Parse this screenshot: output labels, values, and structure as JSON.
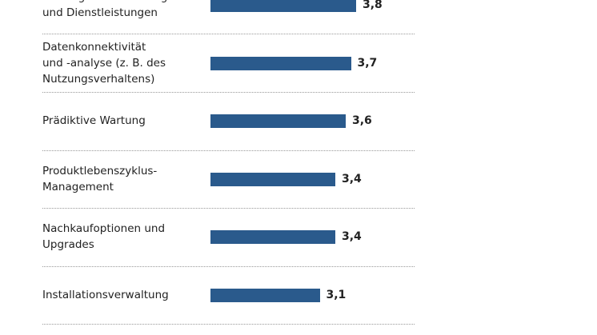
{
  "chart_data": {
    "type": "bar",
    "orientation": "horizontal",
    "categories": [
      [
        "Umfangreiche Wartung",
        "und Dienstleistungen"
      ],
      [
        "Datenkonnektivität",
        "und -analyse (z. B. des",
        "Nutzungsverhaltens)"
      ],
      [
        "Prädiktive Wartung"
      ],
      [
        "Produktlebenszyklus-",
        "Management"
      ],
      [
        "Nachkaufoptionen und",
        "Upgrades"
      ],
      [
        "Installationsverwaltung"
      ]
    ],
    "values": [
      3.8,
      3.7,
      3.6,
      3.4,
      3.4,
      3.1
    ],
    "value_labels": [
      "3,8",
      "3,7",
      "3,6",
      "3,4",
      "3,4",
      "3,1"
    ],
    "xlim": [
      1,
      5
    ],
    "grid": false,
    "bar_color": "#2a5a8c"
  }
}
